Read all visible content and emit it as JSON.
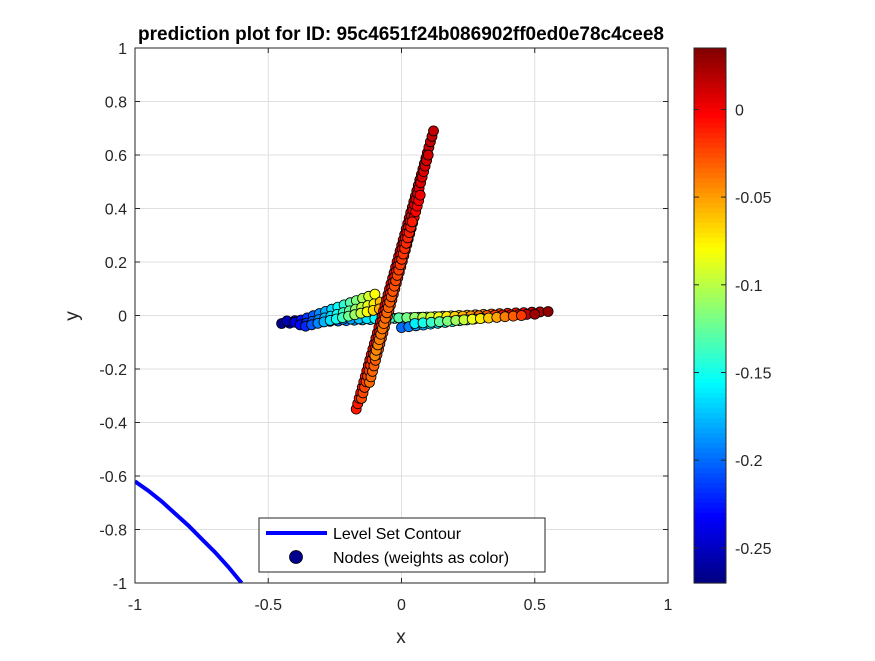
{
  "chart_data": {
    "type": "scatter",
    "title": "prediction plot for ID: 95c4651f24b086902ff0ed0e78c4cee8",
    "xlabel": "x",
    "ylabel": "y",
    "xlim": [
      -1,
      1
    ],
    "ylim": [
      -1,
      1
    ],
    "grid": true,
    "x_ticks": [
      -1,
      -0.5,
      0,
      0.5,
      1
    ],
    "x_tick_labels": [
      "-1",
      "-0.5",
      "0",
      "0.5",
      "1"
    ],
    "y_ticks": [
      -1,
      -0.8,
      -0.6,
      -0.4,
      -0.2,
      0,
      0.2,
      0.4,
      0.6,
      0.8,
      1
    ],
    "y_tick_labels": [
      "-1",
      "-0.8",
      "-0.6",
      "-0.4",
      "-0.2",
      "0",
      "0.2",
      "0.4",
      "0.6",
      "0.8",
      "1"
    ],
    "colorbar": {
      "colormap": "jet",
      "range": [
        -0.27,
        0.035
      ],
      "ticks": [
        -0.25,
        -0.2,
        -0.15,
        -0.1,
        -0.05,
        0
      ],
      "tick_labels": [
        "-0.25",
        "-0.2",
        "-0.15",
        "-0.1",
        "-0.05",
        "0"
      ]
    },
    "legend": {
      "location": "bottom-center",
      "entries": [
        "Level Set Contour",
        "Nodes (weights as color)"
      ]
    },
    "series": [
      {
        "name": "Level Set Contour",
        "kind": "line",
        "color": "#0000ff",
        "x": [
          -1.0,
          -0.95,
          -0.9,
          -0.85,
          -0.8,
          -0.75,
          -0.7,
          -0.65,
          -0.6
        ],
        "y": [
          -0.62,
          -0.655,
          -0.695,
          -0.74,
          -0.785,
          -0.835,
          -0.885,
          -0.94,
          -1.0
        ]
      },
      {
        "name": "Nodes (weights as color)",
        "kind": "scatter",
        "marker_edge": "#000000",
        "groups": [
          {
            "x_start": -0.45,
            "x_end": 0.55,
            "y_start": -0.03,
            "y_end": 0.015,
            "w_start": -0.265,
            "w_end": 0.03,
            "count": 34
          },
          {
            "x_start": -0.43,
            "x_end": 0.5,
            "y_start": -0.02,
            "y_end": 0.005,
            "w_start": -0.255,
            "w_end": 0.025,
            "count": 32
          },
          {
            "x_start": -0.4,
            "x_end": -0.1,
            "y_start": -0.025,
            "y_end": 0.08,
            "w_start": -0.24,
            "w_end": -0.08,
            "count": 14
          },
          {
            "x_start": -0.38,
            "x_end": -0.08,
            "y_start": -0.035,
            "y_end": 0.05,
            "w_start": -0.23,
            "w_end": -0.06,
            "count": 14
          },
          {
            "x_start": -0.36,
            "x_end": -0.06,
            "y_start": -0.04,
            "y_end": 0.03,
            "w_start": -0.22,
            "w_end": -0.04,
            "count": 14
          },
          {
            "x_start": 0.0,
            "x_end": 0.3,
            "y_start": -0.045,
            "y_end": -0.01,
            "w_start": -0.2,
            "w_end": -0.12,
            "count": 12
          },
          {
            "x_start": 0.05,
            "x_end": 0.45,
            "y_start": -0.03,
            "y_end": 0.0,
            "w_start": -0.16,
            "w_end": -0.02,
            "count": 14
          },
          {
            "x_start": -0.17,
            "x_end": 0.12,
            "y_start": -0.35,
            "y_end": 0.69,
            "w_start": -0.01,
            "w_end": 0.015,
            "count": 52
          },
          {
            "x_start": -0.15,
            "x_end": 0.1,
            "y_start": -0.31,
            "y_end": 0.6,
            "w_start": -0.025,
            "w_end": 0.01,
            "count": 45
          },
          {
            "x_start": -0.12,
            "x_end": 0.07,
            "y_start": -0.25,
            "y_end": 0.45,
            "w_start": -0.035,
            "w_end": 0.0,
            "count": 35
          },
          {
            "x_start": -0.1,
            "x_end": 0.04,
            "y_start": -0.15,
            "y_end": 0.35,
            "w_start": -0.045,
            "w_end": -0.01,
            "count": 26
          }
        ]
      }
    ]
  }
}
